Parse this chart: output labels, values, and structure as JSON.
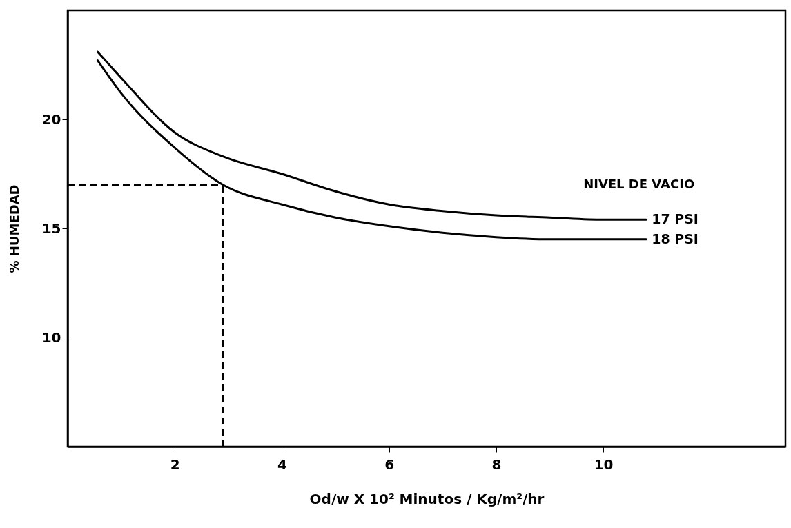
{
  "chart_data": {
    "type": "line",
    "xlabel": "Od/w X 10² Minutos / Kg/m²/hr",
    "ylabel": "% HUMEDAD",
    "legend_title": "NIVEL DE VACIO",
    "xlim": [
      0,
      13.4
    ],
    "ylim": [
      5,
      25
    ],
    "xticks": [
      2,
      4,
      6,
      8,
      10
    ],
    "yticks": [
      10,
      15,
      20
    ],
    "grid": false,
    "legend": false,
    "marker": "none",
    "line_style": "solid",
    "series": [
      {
        "name": "17 PSI",
        "color": "#000000",
        "x": [
          0.56,
          1,
          2,
          2.9,
          4,
          5,
          6,
          7,
          8,
          9,
          10,
          10.8
        ],
        "values": [
          23.1,
          21.9,
          19.4,
          18.3,
          17.5,
          16.7,
          16.1,
          15.8,
          15.6,
          15.5,
          15.4,
          15.4
        ]
      },
      {
        "name": "18 PSI",
        "color": "#000000",
        "x": [
          0.56,
          1,
          2,
          2.9,
          4,
          5,
          6,
          7,
          8,
          9,
          10,
          10.8
        ],
        "values": [
          22.7,
          21.2,
          18.7,
          17.0,
          16.1,
          15.5,
          15.1,
          14.8,
          14.6,
          14.5,
          14.5,
          14.5
        ]
      }
    ],
    "ref_lines": [
      {
        "axis": "y",
        "value": 17.0,
        "line_style": "dashed",
        "color": "#000000"
      },
      {
        "axis": "x",
        "value": 2.9,
        "line_style": "dashed",
        "color": "#000000"
      }
    ]
  }
}
